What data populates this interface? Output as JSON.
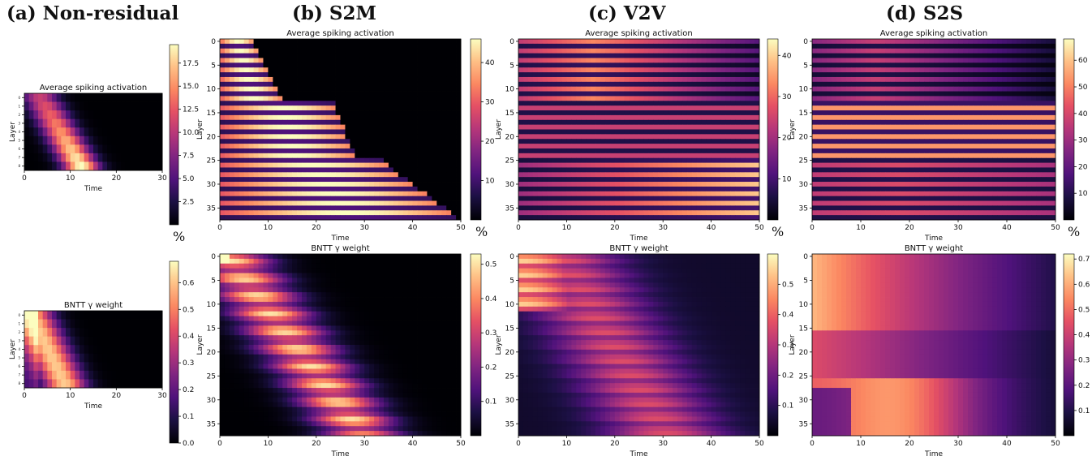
{
  "panels": [
    {
      "label": "(a) Non-residual"
    },
    {
      "label": "(b) S2M"
    },
    {
      "label": "(c) V2V"
    },
    {
      "label": "(d) S2S"
    }
  ],
  "chart_data": [
    {
      "id": "a-act",
      "type": "heatmap",
      "title": "Average spiking activation",
      "xlabel": "Time",
      "ylabel": "Layer",
      "x_range": [
        0,
        30
      ],
      "y_range": [
        0,
        8
      ],
      "xticks": [
        0,
        10,
        20,
        30
      ],
      "yticks": [
        0,
        1,
        2,
        3,
        4,
        5,
        6,
        7,
        8
      ],
      "colorbar": {
        "min": 0,
        "max": 19.5,
        "ticks": [
          2.5,
          5.0,
          7.5,
          10.0,
          12.5,
          15.0,
          17.5
        ],
        "unit": "%"
      },
      "colormap": "magma"
    },
    {
      "id": "a-gamma",
      "type": "heatmap",
      "title": "BNTT γ weight",
      "xlabel": "Time",
      "ylabel": "Layer",
      "x_range": [
        0,
        30
      ],
      "y_range": [
        0,
        8
      ],
      "xticks": [
        0,
        10,
        20,
        30
      ],
      "yticks": [
        0,
        1,
        2,
        3,
        4,
        5,
        6,
        7,
        8
      ],
      "colorbar": {
        "min": 0,
        "max": 0.68,
        "ticks": [
          0.0,
          0.1,
          0.2,
          0.3,
          0.4,
          0.5,
          0.6
        ]
      },
      "colormap": "magma"
    },
    {
      "id": "b-act",
      "type": "heatmap",
      "title": "Average spiking activation",
      "xlabel": "Time",
      "ylabel": "Layer",
      "x_range": [
        0,
        50
      ],
      "y_range": [
        0,
        37
      ],
      "xticks": [
        0,
        10,
        20,
        30,
        40,
        50
      ],
      "yticks": [
        0,
        5,
        10,
        15,
        20,
        25,
        30,
        35
      ],
      "colorbar": {
        "min": 0,
        "max": 46,
        "ticks": [
          10,
          20,
          30,
          40
        ],
        "unit": "%"
      },
      "colormap": "magma"
    },
    {
      "id": "b-gamma",
      "type": "heatmap",
      "title": "BNTT γ weight",
      "xlabel": "Time",
      "ylabel": "Layer",
      "x_range": [
        0,
        50
      ],
      "y_range": [
        0,
        37
      ],
      "xticks": [
        0,
        10,
        20,
        30,
        40,
        50
      ],
      "yticks": [
        0,
        5,
        10,
        15,
        20,
        25,
        30,
        35
      ],
      "colorbar": {
        "min": 0,
        "max": 0.53,
        "ticks": [
          0.1,
          0.2,
          0.3,
          0.4,
          0.5
        ]
      },
      "colormap": "magma"
    },
    {
      "id": "c-act",
      "type": "heatmap",
      "title": "Average spiking activation",
      "xlabel": "Time",
      "ylabel": "Layer",
      "x_range": [
        0,
        50
      ],
      "y_range": [
        0,
        37
      ],
      "xticks": [
        0,
        10,
        20,
        30,
        40,
        50
      ],
      "yticks": [
        0,
        5,
        10,
        15,
        20,
        25,
        30,
        35
      ],
      "colorbar": {
        "min": 0,
        "max": 44,
        "ticks": [
          10,
          20,
          30,
          40
        ],
        "unit": "%"
      },
      "colormap": "magma"
    },
    {
      "id": "c-gamma",
      "type": "heatmap",
      "title": "BNTT γ weight",
      "xlabel": "Time",
      "ylabel": "Layer",
      "x_range": [
        0,
        50
      ],
      "y_range": [
        0,
        37
      ],
      "xticks": [
        0,
        10,
        20,
        30,
        40,
        50
      ],
      "yticks": [
        0,
        5,
        10,
        15,
        20,
        25,
        30,
        35
      ],
      "colorbar": {
        "min": 0,
        "max": 0.6,
        "ticks": [
          0.1,
          0.2,
          0.3,
          0.4,
          0.5
        ]
      },
      "colormap": "magma"
    },
    {
      "id": "d-act",
      "type": "heatmap",
      "title": "Average spiking activation",
      "xlabel": "Time",
      "ylabel": "Layer",
      "x_range": [
        0,
        50
      ],
      "y_range": [
        0,
        37
      ],
      "xticks": [
        0,
        10,
        20,
        30,
        40,
        50
      ],
      "yticks": [
        0,
        5,
        10,
        15,
        20,
        25,
        30,
        35
      ],
      "colorbar": {
        "min": 0,
        "max": 68,
        "ticks": [
          10,
          20,
          30,
          40,
          50,
          60
        ],
        "unit": "%"
      },
      "colormap": "magma"
    },
    {
      "id": "d-gamma",
      "type": "heatmap",
      "title": "BNTT γ weight",
      "xlabel": "Time",
      "ylabel": "Layer",
      "x_range": [
        0,
        50
      ],
      "y_range": [
        0,
        37
      ],
      "xticks": [
        0,
        10,
        20,
        30,
        40,
        50
      ],
      "yticks": [
        0,
        5,
        10,
        15,
        20,
        25,
        30,
        35
      ],
      "colorbar": {
        "min": 0,
        "max": 0.72,
        "ticks": [
          0.1,
          0.2,
          0.3,
          0.4,
          0.5,
          0.6,
          0.7
        ]
      },
      "colormap": "magma"
    }
  ]
}
